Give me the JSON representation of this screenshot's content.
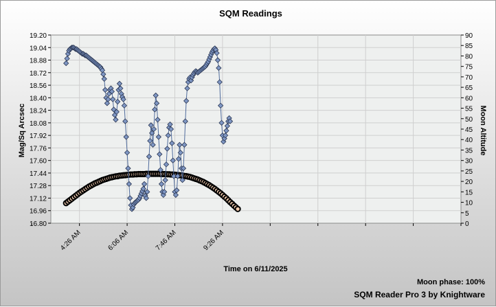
{
  "chart_data": {
    "type": "scatter",
    "title": "SQM Readings",
    "xlabel": "Time on 6/11/2025",
    "ylabel": "Mag/Sq Arcsec",
    "y2label": "Moon Altitude",
    "x_ticks": [
      "4:26 AM",
      "6:06 AM",
      "7:46 AM",
      "9:26 AM"
    ],
    "x_minor_ticks": [
      "2:46 AM",
      "4:26 AM",
      "6:06 AM",
      "7:46 AM",
      "9:26 AM",
      "11:06 AM",
      "12:46 PM",
      "2:26 PM",
      "4:06 PM",
      "5:46 PM"
    ],
    "xlim": [
      "3:26 AM",
      "5:46 PM"
    ],
    "ylim": [
      16.8,
      19.2
    ],
    "y_ticks": [
      16.8,
      16.96,
      17.12,
      17.28,
      17.44,
      17.6,
      17.76,
      17.92,
      18.08,
      18.24,
      18.4,
      18.56,
      18.72,
      18.88,
      19.04,
      19.2
    ],
    "y2lim": [
      0,
      90
    ],
    "y2_ticks": [
      0,
      5,
      10,
      15,
      20,
      25,
      30,
      35,
      40,
      45,
      50,
      55,
      60,
      65,
      70,
      75,
      80,
      85,
      90
    ],
    "grid": true,
    "series": [
      {
        "name": "",
        "axis": "left",
        "color": "#4f6b9c",
        "marker": "diamond",
        "points": [
          [
            "3:58 AM",
            18.84
          ],
          [
            "4:00 AM",
            18.9
          ],
          [
            "4:02 AM",
            18.96
          ],
          [
            "4:04 AM",
            19.0
          ],
          [
            "4:06 AM",
            19.02
          ],
          [
            "4:08 AM",
            19.03
          ],
          [
            "4:10 AM",
            19.04
          ],
          [
            "4:12 AM",
            19.04
          ],
          [
            "4:14 AM",
            19.04
          ],
          [
            "4:16 AM",
            19.03
          ],
          [
            "4:18 AM",
            19.02
          ],
          [
            "4:20 AM",
            19.02
          ],
          [
            "4:22 AM",
            19.01
          ],
          [
            "4:24 AM",
            19.0
          ],
          [
            "4:26 AM",
            18.99
          ],
          [
            "4:28 AM",
            18.98
          ],
          [
            "4:30 AM",
            18.97
          ],
          [
            "4:32 AM",
            18.96
          ],
          [
            "4:34 AM",
            18.96
          ],
          [
            "4:36 AM",
            18.95
          ],
          [
            "4:38 AM",
            18.94
          ],
          [
            "4:40 AM",
            18.94
          ],
          [
            "4:42 AM",
            18.93
          ],
          [
            "4:44 AM",
            18.92
          ],
          [
            "4:46 AM",
            18.91
          ],
          [
            "4:48 AM",
            18.9
          ],
          [
            "4:50 AM",
            18.89
          ],
          [
            "4:52 AM",
            18.88
          ],
          [
            "4:54 AM",
            18.87
          ],
          [
            "4:56 AM",
            18.86
          ],
          [
            "4:58 AM",
            18.85
          ],
          [
            "5:00 AM",
            18.84
          ],
          [
            "5:02 AM",
            18.83
          ],
          [
            "5:04 AM",
            18.82
          ],
          [
            "5:06 AM",
            18.81
          ],
          [
            "5:08 AM",
            18.8
          ],
          [
            "5:10 AM",
            18.79
          ],
          [
            "5:12 AM",
            18.77
          ],
          [
            "5:14 AM",
            18.75
          ],
          [
            "5:16 AM",
            18.7
          ],
          [
            "5:18 AM",
            18.64
          ],
          [
            "5:20 AM",
            18.5
          ],
          [
            "5:22 AM",
            18.4
          ],
          [
            "5:24 AM",
            18.33
          ],
          [
            "5:26 AM",
            18.38
          ],
          [
            "5:28 AM",
            18.45
          ],
          [
            "5:30 AM",
            18.5
          ],
          [
            "5:32 AM",
            18.52
          ],
          [
            "5:34 AM",
            18.48
          ],
          [
            "5:36 AM",
            18.38
          ],
          [
            "5:38 AM",
            18.25
          ],
          [
            "5:40 AM",
            18.18
          ],
          [
            "5:42 AM",
            18.12
          ],
          [
            "5:44 AM",
            18.22
          ],
          [
            "5:46 AM",
            18.35
          ],
          [
            "5:48 AM",
            18.5
          ],
          [
            "5:50 AM",
            18.58
          ],
          [
            "5:52 AM",
            18.52
          ],
          [
            "5:54 AM",
            18.45
          ],
          [
            "5:56 AM",
            18.41
          ],
          [
            "5:58 AM",
            18.38
          ],
          [
            "6:00 AM",
            18.3
          ],
          [
            "6:02 AM",
            18.1
          ],
          [
            "6:04 AM",
            17.9
          ],
          [
            "6:06 AM",
            17.7
          ],
          [
            "6:08 AM",
            17.5
          ],
          [
            "6:10 AM",
            17.3
          ],
          [
            "6:12 AM",
            17.12
          ],
          [
            "6:14 AM",
            17.03
          ],
          [
            "6:16 AM",
            16.98
          ],
          [
            "6:18 AM",
            17.0
          ],
          [
            "6:20 AM",
            17.04
          ],
          [
            "6:22 AM",
            17.06
          ],
          [
            "6:24 AM",
            17.07
          ],
          [
            "6:26 AM",
            17.08
          ],
          [
            "6:28 AM",
            17.09
          ],
          [
            "6:30 AM",
            17.1
          ],
          [
            "6:32 AM",
            17.12
          ],
          [
            "6:34 AM",
            17.15
          ],
          [
            "6:36 AM",
            17.18
          ],
          [
            "6:38 AM",
            17.21
          ],
          [
            "6:40 AM",
            17.24
          ],
          [
            "6:42 AM",
            17.3
          ],
          [
            "6:44 AM",
            17.15
          ],
          [
            "6:46 AM",
            17.12
          ],
          [
            "6:48 AM",
            17.2
          ],
          [
            "6:50 AM",
            17.4
          ],
          [
            "6:52 AM",
            17.65
          ],
          [
            "6:54 AM",
            17.85
          ],
          [
            "6:56 AM",
            18.05
          ],
          [
            "6:58 AM",
            17.95
          ],
          [
            "7:00 AM",
            17.8
          ],
          [
            "7:02 AM",
            18.0
          ],
          [
            "7:04 AM",
            18.25
          ],
          [
            "7:06 AM",
            18.43
          ],
          [
            "7:08 AM",
            18.33
          ],
          [
            "7:10 AM",
            18.12
          ],
          [
            "7:12 AM",
            17.9
          ],
          [
            "7:14 AM",
            17.68
          ],
          [
            "7:16 AM",
            17.48
          ],
          [
            "7:18 AM",
            17.3
          ],
          [
            "7:20 AM",
            17.2
          ],
          [
            "7:22 AM",
            17.16
          ],
          [
            "7:24 AM",
            17.2
          ],
          [
            "7:26 AM",
            17.35
          ],
          [
            "7:28 AM",
            17.55
          ],
          [
            "7:30 AM",
            17.75
          ],
          [
            "7:32 AM",
            17.92
          ],
          [
            "7:34 AM",
            18.02
          ],
          [
            "7:36 AM",
            18.06
          ],
          [
            "7:38 AM",
            18.0
          ],
          [
            "7:40 AM",
            17.82
          ],
          [
            "7:42 AM",
            17.6
          ],
          [
            "7:44 AM",
            17.4
          ],
          [
            "7:46 AM",
            17.2
          ],
          [
            "7:48 AM",
            17.16
          ],
          [
            "7:50 AM",
            17.22
          ],
          [
            "7:52 AM",
            17.4
          ],
          [
            "7:54 AM",
            17.62
          ],
          [
            "7:56 AM",
            17.8
          ],
          [
            "7:58 AM",
            17.7
          ],
          [
            "8:00 AM",
            17.5
          ],
          [
            "8:02 AM",
            17.35
          ],
          [
            "8:04 AM",
            17.5
          ],
          [
            "8:06 AM",
            17.8
          ],
          [
            "8:08 AM",
            18.1
          ],
          [
            "8:10 AM",
            18.36
          ],
          [
            "8:12 AM",
            18.52
          ],
          [
            "8:14 AM",
            18.6
          ],
          [
            "8:16 AM",
            18.64
          ],
          [
            "8:18 AM",
            18.66
          ],
          [
            "8:20 AM",
            18.62
          ],
          [
            "8:22 AM",
            18.66
          ],
          [
            "8:24 AM",
            18.69
          ],
          [
            "8:26 AM",
            18.71
          ],
          [
            "8:28 AM",
            18.73
          ],
          [
            "8:30 AM",
            18.74
          ],
          [
            "8:32 AM",
            18.73
          ],
          [
            "8:34 AM",
            18.72
          ],
          [
            "8:36 AM",
            18.73
          ],
          [
            "8:38 AM",
            18.74
          ],
          [
            "8:40 AM",
            18.75
          ],
          [
            "8:42 AM",
            18.76
          ],
          [
            "8:44 AM",
            18.77
          ],
          [
            "8:46 AM",
            18.78
          ],
          [
            "8:48 AM",
            18.79
          ],
          [
            "8:50 AM",
            18.8
          ],
          [
            "8:52 AM",
            18.82
          ],
          [
            "8:54 AM",
            18.84
          ],
          [
            "8:56 AM",
            18.86
          ],
          [
            "8:58 AM",
            18.89
          ],
          [
            "9:00 AM",
            18.92
          ],
          [
            "9:02 AM",
            18.95
          ],
          [
            "9:04 AM",
            18.98
          ],
          [
            "9:06 AM",
            19.0
          ],
          [
            "9:08 AM",
            19.02
          ],
          [
            "9:10 AM",
            19.03
          ],
          [
            "9:12 AM",
            19.01
          ],
          [
            "9:14 AM",
            18.97
          ],
          [
            "9:16 AM",
            18.88
          ],
          [
            "9:18 AM",
            18.78
          ],
          [
            "9:20 AM",
            18.6
          ],
          [
            "9:22 AM",
            18.3
          ],
          [
            "9:24 AM",
            18.08
          ],
          [
            "9:26 AM",
            17.92
          ],
          [
            "9:28 AM",
            17.84
          ],
          [
            "9:30 AM",
            17.88
          ],
          [
            "9:32 AM",
            17.92
          ],
          [
            "9:34 AM",
            17.98
          ],
          [
            "9:36 AM",
            18.04
          ],
          [
            "9:38 AM",
            18.1
          ],
          [
            "9:40 AM",
            18.14
          ],
          [
            "9:42 AM",
            18.1
          ]
        ]
      },
      {
        "name": "",
        "axis": "right",
        "color": "#000000",
        "marker": "circle",
        "points": [
          [
            "3:58 AM",
            9.6
          ],
          [
            "4:02 AM",
            10.3
          ],
          [
            "4:06 AM",
            11.0
          ],
          [
            "4:10 AM",
            11.7
          ],
          [
            "4:14 AM",
            12.4
          ],
          [
            "4:18 AM",
            13.1
          ],
          [
            "4:22 AM",
            13.8
          ],
          [
            "4:26 AM",
            14.5
          ],
          [
            "4:30 AM",
            15.1
          ],
          [
            "4:34 AM",
            15.7
          ],
          [
            "4:38 AM",
            16.3
          ],
          [
            "4:42 AM",
            16.9
          ],
          [
            "4:46 AM",
            17.5
          ],
          [
            "4:50 AM",
            18.0
          ],
          [
            "4:54 AM",
            18.5
          ],
          [
            "4:58 AM",
            19.0
          ],
          [
            "5:02 AM",
            19.4
          ],
          [
            "5:06 AM",
            19.8
          ],
          [
            "5:10 AM",
            20.2
          ],
          [
            "5:14 AM",
            20.6
          ],
          [
            "5:18 AM",
            20.9
          ],
          [
            "5:22 AM",
            21.2
          ],
          [
            "5:26 AM",
            21.5
          ],
          [
            "5:30 AM",
            21.8
          ],
          [
            "5:34 AM",
            22.0
          ],
          [
            "5:38 AM",
            22.2
          ],
          [
            "5:42 AM",
            22.4
          ],
          [
            "5:46 AM",
            22.5
          ],
          [
            "5:50 AM",
            22.7
          ],
          [
            "5:54 AM",
            22.8
          ],
          [
            "5:58 AM",
            22.9
          ],
          [
            "6:02 AM",
            23.0
          ],
          [
            "6:06 AM",
            23.1
          ],
          [
            "6:10 AM",
            23.2
          ],
          [
            "6:14 AM",
            23.3
          ],
          [
            "6:18 AM",
            23.3
          ],
          [
            "6:22 AM",
            23.4
          ],
          [
            "6:26 AM",
            23.4
          ],
          [
            "6:30 AM",
            23.5
          ],
          [
            "6:34 AM",
            23.5
          ],
          [
            "6:38 AM",
            23.5
          ],
          [
            "6:42 AM",
            23.5
          ],
          [
            "6:46 AM",
            23.6
          ],
          [
            "6:50 AM",
            23.6
          ],
          [
            "6:54 AM",
            23.6
          ],
          [
            "6:58 AM",
            23.6
          ],
          [
            "7:02 AM",
            23.6
          ],
          [
            "7:06 AM",
            23.6
          ],
          [
            "7:10 AM",
            23.6
          ],
          [
            "7:14 AM",
            23.6
          ],
          [
            "7:18 AM",
            23.5
          ],
          [
            "7:22 AM",
            23.5
          ],
          [
            "7:26 AM",
            23.5
          ],
          [
            "7:30 AM",
            23.4
          ],
          [
            "7:34 AM",
            23.4
          ],
          [
            "7:38 AM",
            23.3
          ],
          [
            "7:42 AM",
            23.3
          ],
          [
            "7:46 AM",
            23.2
          ],
          [
            "7:50 AM",
            23.1
          ],
          [
            "7:54 AM",
            23.0
          ],
          [
            "7:58 AM",
            22.9
          ],
          [
            "8:02 AM",
            22.8
          ],
          [
            "8:06 AM",
            22.6
          ],
          [
            "8:10 AM",
            22.5
          ],
          [
            "8:14 AM",
            22.3
          ],
          [
            "8:18 AM",
            22.1
          ],
          [
            "8:22 AM",
            21.8
          ],
          [
            "8:26 AM",
            21.5
          ],
          [
            "8:30 AM",
            21.2
          ],
          [
            "8:34 AM",
            20.9
          ],
          [
            "8:38 AM",
            20.5
          ],
          [
            "8:42 AM",
            20.1
          ],
          [
            "8:46 AM",
            19.7
          ],
          [
            "8:50 AM",
            19.2
          ],
          [
            "8:54 AM",
            18.7
          ],
          [
            "8:58 AM",
            18.2
          ],
          [
            "9:02 AM",
            17.6
          ],
          [
            "9:06 AM",
            17.0
          ],
          [
            "9:10 AM",
            16.4
          ],
          [
            "9:14 AM",
            15.7
          ],
          [
            "9:18 AM",
            15.0
          ],
          [
            "9:22 AM",
            14.3
          ],
          [
            "9:26 AM",
            13.5
          ],
          [
            "9:30 AM",
            12.7
          ],
          [
            "9:34 AM",
            11.9
          ],
          [
            "9:38 AM",
            11.0
          ],
          [
            "9:42 AM",
            10.1
          ],
          [
            "9:46 AM",
            9.3
          ],
          [
            "9:50 AM",
            8.4
          ],
          [
            "9:54 AM",
            7.6
          ],
          [
            "9:58 AM",
            6.8
          ]
        ]
      }
    ]
  },
  "footer": {
    "moon_phase": "Moon phase: 100%",
    "brand": "SQM Reader Pro 3 by Knightware"
  }
}
